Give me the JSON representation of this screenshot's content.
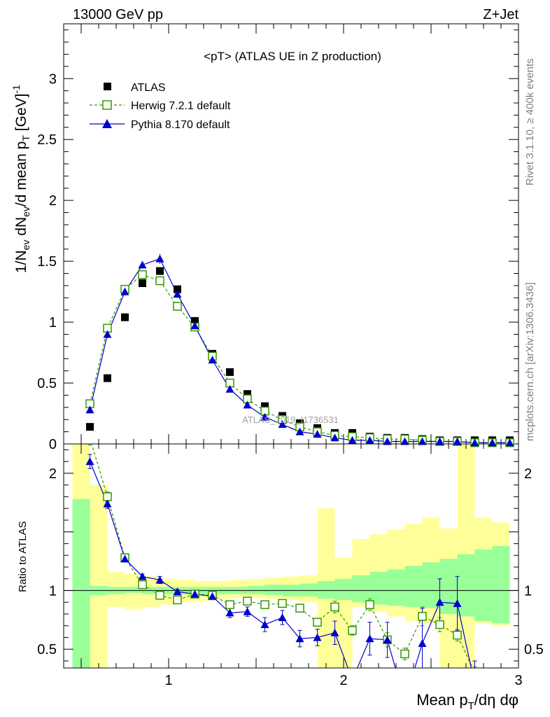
{
  "header": {
    "left": "13000 GeV pp",
    "right": "Z+Jet"
  },
  "side_text": {
    "rivet": "Rivet 3.1.10, ≥ 400k events",
    "mcplots": "mcplots.cern.ch [arXiv:1306.3436]"
  },
  "watermark": "ATLAS_2019_I1736531",
  "chart_data": [
    {
      "type": "scatter",
      "panel": "main",
      "title": "<pT> (ATLAS UE in Z production)",
      "ylabel": "1/N_ev dN_ev/d mean p_T [GeV]^-1",
      "xlim": [
        0.4,
        3.0
      ],
      "ylim": [
        0,
        3.45
      ],
      "yticks": [
        0,
        0.5,
        1,
        1.5,
        2,
        2.5,
        3
      ],
      "ytick_labels": [
        "0",
        "0.5",
        "1",
        "1.5",
        "2",
        "2.5",
        "3"
      ],
      "legend": {
        "position": "top-left",
        "entries": [
          "ATLAS",
          "Herwig 7.2.1 default",
          "Pythia 8.170 default"
        ]
      },
      "x": [
        0.55,
        0.65,
        0.75,
        0.85,
        0.95,
        1.05,
        1.15,
        1.25,
        1.35,
        1.45,
        1.55,
        1.65,
        1.75,
        1.85,
        1.95,
        2.05,
        2.15,
        2.25,
        2.35,
        2.45,
        2.55,
        2.65,
        2.75,
        2.85,
        2.95
      ],
      "series": [
        {
          "name": "ATLAS",
          "color": "#000000",
          "marker": "square",
          "values": [
            0.14,
            0.54,
            1.04,
            1.32,
            1.42,
            1.27,
            1.01,
            0.74,
            0.59,
            0.41,
            0.31,
            0.23,
            0.17,
            0.13,
            0.09,
            0.09,
            0.06,
            0.05,
            0.05,
            0.04,
            0.03,
            0.03,
            0.03,
            0.03,
            0.03
          ]
        },
        {
          "name": "Herwig 7.2.1 default",
          "color": "#339900",
          "marker": "open-square",
          "line": "dashed",
          "values": [
            0.33,
            0.95,
            1.27,
            1.39,
            1.34,
            1.13,
            0.96,
            0.72,
            0.5,
            0.37,
            0.27,
            0.2,
            0.14,
            0.1,
            0.07,
            0.06,
            0.05,
            0.04,
            0.04,
            0.03,
            0.02,
            0.02,
            0.01,
            0.01,
            0.01
          ]
        },
        {
          "name": "Pythia 8.170 default",
          "color": "#0000cc",
          "marker": "triangle",
          "line": "solid",
          "values": [
            0.28,
            0.9,
            1.25,
            1.47,
            1.52,
            1.23,
            0.97,
            0.69,
            0.45,
            0.32,
            0.22,
            0.16,
            0.1,
            0.08,
            0.05,
            0.03,
            0.03,
            0.02,
            0.02,
            0.02,
            0.02,
            0.02,
            0.01,
            0.01,
            0.01
          ],
          "errors": [
            0.03,
            0.03,
            0.03,
            0.03,
            0.04,
            0.03,
            0.03,
            0.02,
            0.02,
            0.01,
            0.01,
            0.01,
            0.01,
            0.01,
            0.01,
            0.01,
            0.01,
            0.01,
            0.01,
            0.01,
            0.01,
            0.01,
            0.01,
            0.01,
            0.01
          ]
        }
      ]
    },
    {
      "type": "line",
      "panel": "ratio",
      "ylabel": "Ratio to ATLAS",
      "xlabel": "Mean p_T/dη dφ",
      "xlim": [
        0.4,
        3.0
      ],
      "ylim": [
        0.34,
        2.25
      ],
      "xticks": [
        1,
        2,
        3
      ],
      "xtick_labels": [
        "1",
        "2",
        "3"
      ],
      "yticks": [
        0.5,
        1,
        2
      ],
      "ytick_labels": [
        "0.5",
        "1",
        "2"
      ],
      "x": [
        0.55,
        0.65,
        0.75,
        0.85,
        0.95,
        1.05,
        1.15,
        1.25,
        1.35,
        1.45,
        1.55,
        1.65,
        1.75,
        1.85,
        1.95,
        2.05,
        2.15,
        2.25,
        2.35,
        2.45,
        2.55,
        2.65,
        2.75,
        2.85,
        2.95
      ],
      "bins": [
        0.45,
        0.55,
        0.65,
        0.75,
        0.85,
        0.95,
        1.05,
        1.15,
        1.25,
        1.35,
        1.45,
        1.55,
        1.65,
        1.75,
        1.85,
        1.95,
        2.05,
        2.15,
        2.25,
        2.35,
        2.45,
        2.55,
        2.65,
        2.75,
        2.85,
        2.95
      ],
      "band_green": {
        "color": "#99ff99",
        "lo": [
          0.3,
          0.96,
          0.97,
          0.98,
          0.97,
          0.97,
          0.97,
          0.97,
          0.97,
          0.97,
          0.97,
          0.96,
          0.95,
          0.95,
          0.93,
          0.92,
          0.9,
          0.88,
          0.87,
          0.86,
          0.85,
          0.8,
          0.78,
          0.74,
          0.72
        ],
        "hi": [
          1.78,
          1.04,
          1.03,
          1.03,
          1.03,
          1.03,
          1.03,
          1.03,
          1.03,
          1.03,
          1.04,
          1.05,
          1.05,
          1.06,
          1.08,
          1.1,
          1.13,
          1.16,
          1.18,
          1.21,
          1.24,
          1.27,
          1.31,
          1.35,
          1.38
        ]
      },
      "band_yellow": {
        "color": "#ffff99",
        "lo": [
          0.3,
          0.3,
          0.86,
          0.84,
          0.86,
          0.88,
          0.9,
          0.91,
          0.93,
          0.94,
          0.94,
          0.93,
          0.92,
          0.9,
          0.3,
          0.3,
          0.86,
          0.82,
          0.78,
          0.74,
          0.72,
          0.3,
          0.3,
          0.72,
          0.7
        ],
        "hi": [
          2.25,
          1.9,
          1.16,
          1.14,
          1.12,
          1.1,
          1.09,
          1.08,
          1.08,
          1.09,
          1.1,
          1.11,
          1.12,
          1.13,
          1.7,
          1.28,
          1.44,
          1.48,
          1.52,
          1.57,
          1.62,
          1.53,
          2.25,
          1.62,
          1.58
        ]
      },
      "reference": 1,
      "series": [
        {
          "name": "Herwig 7.2.1 default",
          "color": "#339900",
          "marker": "open-square",
          "line": "dashed",
          "values": [
            2.3,
            1.8,
            1.28,
            1.05,
            0.96,
            0.92,
            0.97,
            0.96,
            0.88,
            0.91,
            0.88,
            0.89,
            0.85,
            0.73,
            0.86,
            0.66,
            0.88,
            0.58,
            0.46,
            0.78,
            0.71,
            0.62,
            0.3,
            null,
            null
          ],
          "errors": [
            0.06,
            0.04,
            0.02,
            0.02,
            0.02,
            0.02,
            0.02,
            0.02,
            0.02,
            0.02,
            0.02,
            0.02,
            0.03,
            0.03,
            0.05,
            0.04,
            0.05,
            0.06,
            0.05,
            0.08,
            0.06,
            0.05,
            0.05,
            null,
            null
          ]
        },
        {
          "name": "Pythia 8.170 default",
          "color": "#0000cc",
          "marker": "triangle",
          "line": "solid",
          "values": [
            2.1,
            1.74,
            1.27,
            1.12,
            1.09,
            0.99,
            0.97,
            0.95,
            0.81,
            0.82,
            0.71,
            0.77,
            0.59,
            0.6,
            0.64,
            0.24,
            0.59,
            0.58,
            0.06,
            0.55,
            0.9,
            0.89,
            0.2,
            null,
            null
          ],
          "errors": [
            0.06,
            0.04,
            0.02,
            0.02,
            0.03,
            0.02,
            0.02,
            0.02,
            0.04,
            0.04,
            0.06,
            0.06,
            0.07,
            0.07,
            0.1,
            0.1,
            0.14,
            0.15,
            0.2,
            0.3,
            0.2,
            0.23,
            0.2,
            null,
            null
          ]
        }
      ]
    }
  ]
}
